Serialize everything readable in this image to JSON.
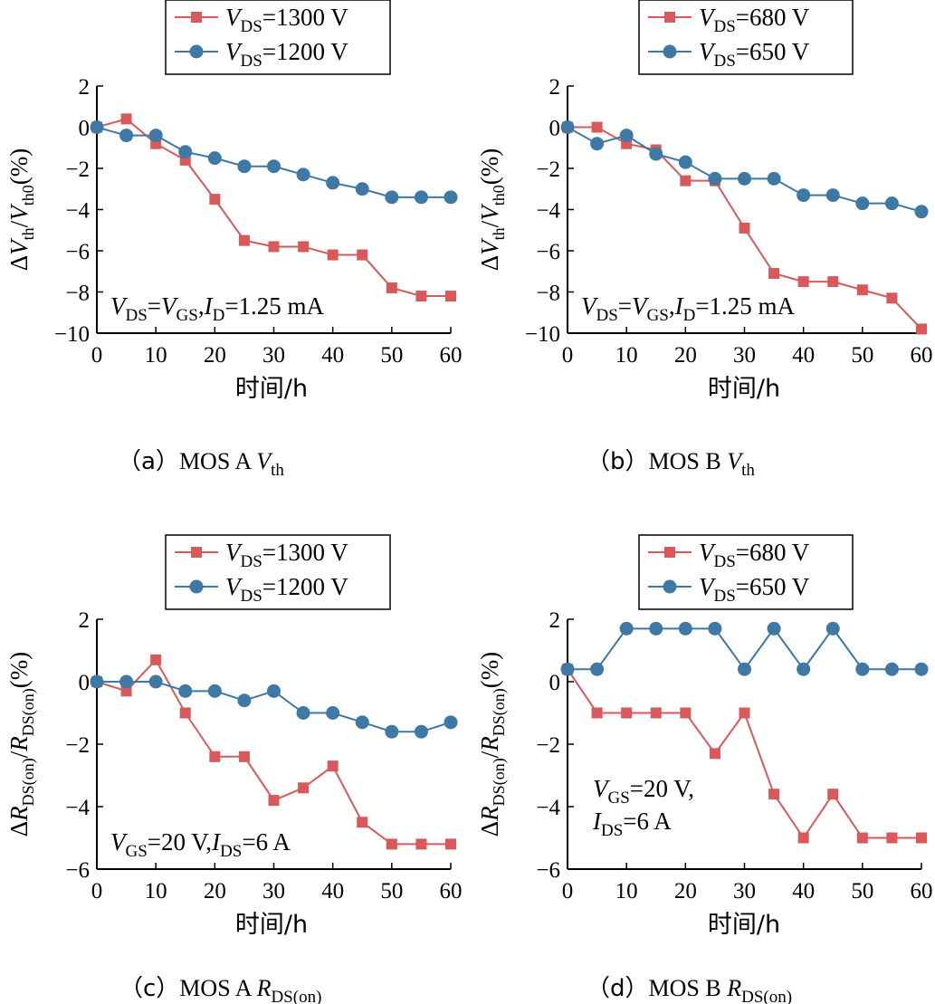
{
  "colors": {
    "series_high": "#d9585a",
    "series_low": "#3e78a4",
    "axis": "#000000"
  },
  "chart_data": [
    {
      "id": "a",
      "type": "line",
      "caption": {
        "prefix": "（a）",
        "text": "MOS A ",
        "sym": "V",
        "sub": "th"
      },
      "ylabel": {
        "pre": "Δ",
        "num": "V",
        "num_sub": "th",
        "slash": "/",
        "den": "V",
        "den_sub": "th0",
        "post": "(%)"
      },
      "xlabel": "时间/h",
      "x": [
        0,
        5,
        10,
        15,
        20,
        25,
        30,
        35,
        40,
        45,
        50,
        55,
        60
      ],
      "xticks": [
        0,
        10,
        20,
        30,
        40,
        50,
        60
      ],
      "xlim": [
        0,
        60
      ],
      "yticks": [
        2,
        0,
        -2,
        -4,
        -6,
        -8,
        -10
      ],
      "ytick_labels": [
        "2",
        "0",
        "−2",
        "−4",
        "−6",
        "−8",
        "−10"
      ],
      "ylim": [
        -10,
        2
      ],
      "legend_location": "top-center",
      "series": [
        {
          "name": "V_DS=1300 V",
          "legend": {
            "sym": "V",
            "sub": "DS",
            "rest": "=1300 V"
          },
          "marker": "square",
          "color_key": "series_high",
          "values": [
            0,
            0.4,
            -0.8,
            -1.6,
            -3.5,
            -5.5,
            -5.8,
            -5.8,
            -6.2,
            -6.2,
            -7.8,
            -8.2,
            -8.2
          ]
        },
        {
          "name": "V_DS=1200 V",
          "legend": {
            "sym": "V",
            "sub": "DS",
            "rest": "=1200 V"
          },
          "marker": "circle",
          "color_key": "series_low",
          "values": [
            0,
            -0.4,
            -0.4,
            -1.2,
            -1.5,
            -1.9,
            -1.9,
            -2.3,
            -2.7,
            -3.0,
            -3.4,
            -3.4,
            -3.4
          ]
        }
      ],
      "annotation": {
        "parts": [
          {
            "t": "V",
            "style": "italic"
          },
          {
            "t": "DS",
            "style": "sub"
          },
          {
            "t": "=",
            "style": "normal"
          },
          {
            "t": "V",
            "style": "italic"
          },
          {
            "t": "GS",
            "style": "sub"
          },
          {
            "t": ",",
            "style": "normal"
          },
          {
            "t": "I",
            "style": "italic"
          },
          {
            "t": "D",
            "style": "sub"
          },
          {
            "t": "=1.25 mA",
            "style": "normal"
          }
        ],
        "location": "bottom-left"
      }
    },
    {
      "id": "b",
      "type": "line",
      "caption": {
        "prefix": "（b）",
        "text": "MOS B ",
        "sym": "V",
        "sub": "th"
      },
      "ylabel": {
        "pre": "Δ",
        "num": "V",
        "num_sub": "th",
        "slash": "/",
        "den": "V",
        "den_sub": "th0",
        "post": "(%)"
      },
      "xlabel": "时间/h",
      "x": [
        0,
        5,
        10,
        15,
        20,
        25,
        30,
        35,
        40,
        45,
        50,
        55,
        60
      ],
      "xticks": [
        0,
        10,
        20,
        30,
        40,
        50,
        60
      ],
      "xlim": [
        0,
        60
      ],
      "yticks": [
        2,
        0,
        -2,
        -4,
        -6,
        -8,
        -10
      ],
      "ytick_labels": [
        "2",
        "0",
        "−2",
        "−4",
        "−6",
        "−8",
        "−10"
      ],
      "ylim": [
        -10,
        2
      ],
      "legend_location": "top-center",
      "series": [
        {
          "name": "V_DS=680 V",
          "legend": {
            "sym": "V",
            "sub": "DS",
            "rest": "=680 V"
          },
          "marker": "square",
          "color_key": "series_high",
          "values": [
            0,
            0,
            -0.8,
            -1.1,
            -2.6,
            -2.6,
            -4.9,
            -7.1,
            -7.5,
            -7.5,
            -7.9,
            -8.3,
            -9.8
          ]
        },
        {
          "name": "V_DS=650 V",
          "legend": {
            "sym": "V",
            "sub": "DS",
            "rest": "=650 V"
          },
          "marker": "circle",
          "color_key": "series_low",
          "values": [
            0,
            -0.8,
            -0.4,
            -1.3,
            -1.7,
            -2.5,
            -2.5,
            -2.5,
            -3.3,
            -3.3,
            -3.7,
            -3.7,
            -4.1
          ]
        }
      ],
      "annotation": {
        "parts": [
          {
            "t": "V",
            "style": "italic"
          },
          {
            "t": "DS",
            "style": "sub"
          },
          {
            "t": "=",
            "style": "normal"
          },
          {
            "t": "V",
            "style": "italic"
          },
          {
            "t": "GS",
            "style": "sub"
          },
          {
            "t": ",",
            "style": "normal"
          },
          {
            "t": "I",
            "style": "italic"
          },
          {
            "t": "D",
            "style": "sub"
          },
          {
            "t": "=1.25 mA",
            "style": "normal"
          }
        ],
        "location": "bottom-left"
      }
    },
    {
      "id": "c",
      "type": "line",
      "caption": {
        "prefix": "（c）",
        "text": "MOS A ",
        "sym": "R",
        "sub": "DS(on)"
      },
      "ylabel": {
        "pre": "Δ",
        "num": "R",
        "num_sub": "DS(on)",
        "slash": "/",
        "den": "R",
        "den_sub": "DS(on)",
        "post": "(%)"
      },
      "xlabel": "时间/h",
      "x": [
        0,
        5,
        10,
        15,
        20,
        25,
        30,
        35,
        40,
        45,
        50,
        55,
        60
      ],
      "xticks": [
        0,
        10,
        20,
        30,
        40,
        50,
        60
      ],
      "xlim": [
        0,
        60
      ],
      "yticks": [
        2,
        0,
        -2,
        -4,
        -6
      ],
      "ytick_labels": [
        "2",
        "0",
        "−2",
        "−4",
        "−6"
      ],
      "ylim": [
        -6,
        2
      ],
      "legend_location": "top-center",
      "series": [
        {
          "name": "V_DS=1300 V",
          "legend": {
            "sym": "V",
            "sub": "DS",
            "rest": "=1300 V"
          },
          "marker": "square",
          "color_key": "series_high",
          "values": [
            0,
            -0.3,
            0.7,
            -1.0,
            -2.4,
            -2.4,
            -3.8,
            -3.4,
            -2.7,
            -4.5,
            -5.2,
            -5.2,
            -5.2
          ]
        },
        {
          "name": "V_DS=1200 V",
          "legend": {
            "sym": "V",
            "sub": "DS",
            "rest": "=1200 V"
          },
          "marker": "circle",
          "color_key": "series_low",
          "values": [
            0,
            0,
            0,
            -0.3,
            -0.3,
            -0.6,
            -0.3,
            -1.0,
            -1.0,
            -1.3,
            -1.6,
            -1.6,
            -1.3
          ]
        }
      ],
      "annotation": {
        "parts": [
          {
            "t": "V",
            "style": "italic"
          },
          {
            "t": "GS",
            "style": "sub"
          },
          {
            "t": "=20 V,",
            "style": "normal"
          },
          {
            "t": "I",
            "style": "italic"
          },
          {
            "t": "DS",
            "style": "sub"
          },
          {
            "t": "=6 A",
            "style": "normal"
          }
        ],
        "location": "bottom-left"
      }
    },
    {
      "id": "d",
      "type": "line",
      "caption": {
        "prefix": "（d）",
        "text": "MOS B ",
        "sym": "R",
        "sub": "DS(on)"
      },
      "ylabel": {
        "pre": "Δ",
        "num": "R",
        "num_sub": "DS(on)",
        "slash": "/",
        "den": "R",
        "den_sub": "DS(on)",
        "post": "(%)"
      },
      "xlabel": "时间/h",
      "x": [
        0,
        5,
        10,
        15,
        20,
        25,
        30,
        35,
        40,
        45,
        50,
        55,
        60
      ],
      "xticks": [
        0,
        10,
        20,
        30,
        40,
        50,
        60
      ],
      "xlim": [
        0,
        60
      ],
      "yticks": [
        2,
        0,
        -2,
        -4,
        -6
      ],
      "ytick_labels": [
        "2",
        "0",
        "−2",
        "−4",
        "−6"
      ],
      "ylim": [
        -6,
        2
      ],
      "legend_location": "top-center",
      "series": [
        {
          "name": "V_DS=680 V",
          "legend": {
            "sym": "V",
            "sub": "DS",
            "rest": "=680 V"
          },
          "marker": "square",
          "color_key": "series_high",
          "values": [
            0.4,
            -1.0,
            -1.0,
            -1.0,
            -1.0,
            -2.3,
            -1.0,
            -3.6,
            -5.0,
            -3.6,
            -5.0,
            -5.0,
            -5.0
          ]
        },
        {
          "name": "V_DS=650 V",
          "legend": {
            "sym": "V",
            "sub": "DS",
            "rest": "=650 V"
          },
          "marker": "circle",
          "color_key": "series_low",
          "values": [
            0.4,
            0.4,
            1.7,
            1.7,
            1.7,
            1.7,
            0.4,
            1.7,
            0.4,
            1.7,
            0.4,
            0.4,
            0.4
          ]
        }
      ],
      "annotation": {
        "lines": [
          [
            {
              "t": "V",
              "style": "italic"
            },
            {
              "t": "GS",
              "style": "sub"
            },
            {
              "t": "=20 V,",
              "style": "normal"
            }
          ],
          [
            {
              "t": "I",
              "style": "italic"
            },
            {
              "t": "DS",
              "style": "sub"
            },
            {
              "t": "=6 A",
              "style": "normal"
            }
          ]
        ],
        "location": "bottom-left"
      }
    }
  ]
}
